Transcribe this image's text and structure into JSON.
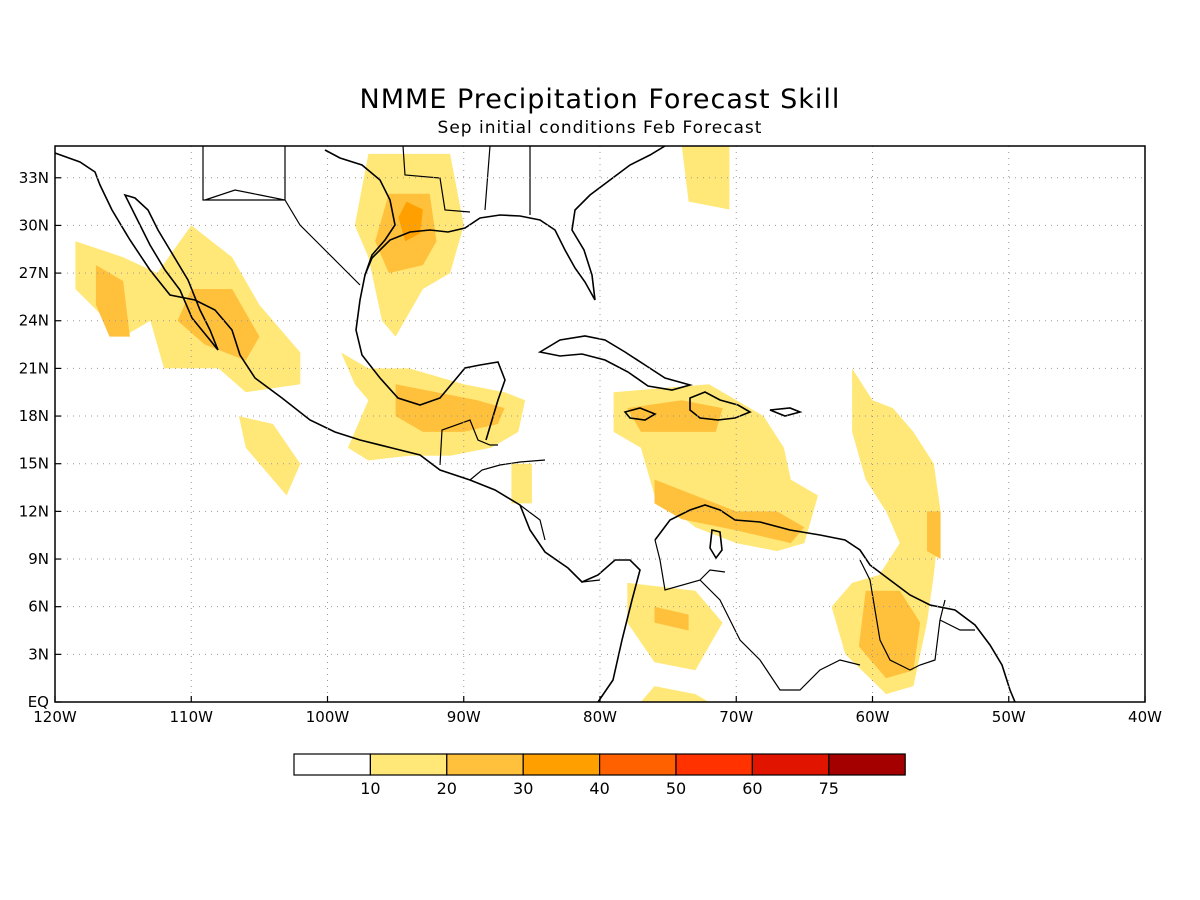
{
  "title": "NMME Precipitation Forecast Skill",
  "subtitle": "Sep initial conditions  Feb Forecast",
  "map": {
    "lon_range": [
      -120,
      -40
    ],
    "lat_range": [
      0,
      35
    ],
    "lon_ticks": [
      {
        "value": -120,
        "label": "120W"
      },
      {
        "value": -110,
        "label": "110W"
      },
      {
        "value": -100,
        "label": "100W"
      },
      {
        "value": -90,
        "label": "90W"
      },
      {
        "value": -80,
        "label": "80W"
      },
      {
        "value": -70,
        "label": "70W"
      },
      {
        "value": -60,
        "label": "60W"
      },
      {
        "value": -50,
        "label": "50W"
      },
      {
        "value": -40,
        "label": "40W"
      }
    ],
    "lat_ticks": [
      {
        "value": 0,
        "label": "EQ"
      },
      {
        "value": 3,
        "label": "3N"
      },
      {
        "value": 6,
        "label": "6N"
      },
      {
        "value": 9,
        "label": "9N"
      },
      {
        "value": 12,
        "label": "12N"
      },
      {
        "value": 15,
        "label": "15N"
      },
      {
        "value": 18,
        "label": "18N"
      },
      {
        "value": 21,
        "label": "21N"
      },
      {
        "value": 24,
        "label": "24N"
      },
      {
        "value": 27,
        "label": "27N"
      },
      {
        "value": 30,
        "label": "30N"
      },
      {
        "value": 33,
        "label": "33N"
      }
    ],
    "grid": true,
    "skill_regions": [
      {
        "level": 1,
        "poly": [
          [
            -118.5,
            29
          ],
          [
            -115,
            28
          ],
          [
            -112.5,
            27
          ],
          [
            -110,
            30
          ],
          [
            -107,
            28
          ],
          [
            -105,
            25
          ],
          [
            -102,
            22
          ],
          [
            -102,
            20
          ],
          [
            -106,
            19.5
          ],
          [
            -108,
            21
          ],
          [
            -112,
            21
          ],
          [
            -113,
            24
          ],
          [
            -115,
            23
          ],
          [
            -118.5,
            26
          ]
        ]
      },
      {
        "level": 2,
        "poly": [
          [
            -117,
            27.5
          ],
          [
            -115,
            26.5
          ],
          [
            -114.5,
            23
          ],
          [
            -116,
            23
          ],
          [
            -117,
            25
          ]
        ]
      },
      {
        "level": 2,
        "poly": [
          [
            -110,
            26
          ],
          [
            -107,
            26
          ],
          [
            -105,
            23
          ],
          [
            -106,
            21.5
          ],
          [
            -109,
            22.5
          ],
          [
            -111,
            24
          ]
        ]
      },
      {
        "level": 1,
        "poly": [
          [
            -106.5,
            18
          ],
          [
            -104,
            17.5
          ],
          [
            -102,
            15
          ],
          [
            -103,
            13
          ],
          [
            -104,
            14
          ],
          [
            -106,
            16
          ]
        ]
      },
      {
        "level": 1,
        "poly": [
          [
            -97,
            34.5
          ],
          [
            -91,
            34.5
          ],
          [
            -90,
            30
          ],
          [
            -91,
            27
          ],
          [
            -93,
            26
          ],
          [
            -95,
            23
          ],
          [
            -96,
            24
          ],
          [
            -97,
            28
          ],
          [
            -98,
            30
          ]
        ]
      },
      {
        "level": 2,
        "poly": [
          [
            -95.5,
            32
          ],
          [
            -92.5,
            32
          ],
          [
            -92,
            29
          ],
          [
            -93,
            27.5
          ],
          [
            -95.5,
            27
          ],
          [
            -96.5,
            29
          ]
        ]
      },
      {
        "level": 3,
        "poly": [
          [
            -94.2,
            31.5
          ],
          [
            -93,
            31
          ],
          [
            -93.2,
            29.5
          ],
          [
            -94.3,
            29
          ],
          [
            -94.8,
            30.5
          ]
        ]
      },
      {
        "level": 1,
        "poly": [
          [
            -99,
            22
          ],
          [
            -97,
            21
          ],
          [
            -94,
            21
          ],
          [
            -90,
            20
          ],
          [
            -87,
            19.5
          ],
          [
            -85.5,
            19
          ],
          [
            -86,
            17
          ],
          [
            -88,
            16
          ],
          [
            -91,
            15.5
          ],
          [
            -94,
            15.5
          ],
          [
            -97,
            15.2
          ],
          [
            -98.5,
            16
          ],
          [
            -97,
            19
          ],
          [
            -98,
            20
          ]
        ]
      },
      {
        "level": 2,
        "poly": [
          [
            -95,
            20
          ],
          [
            -92,
            19.5
          ],
          [
            -89,
            19
          ],
          [
            -87,
            18.5
          ],
          [
            -87.5,
            17.5
          ],
          [
            -90,
            17
          ],
          [
            -93,
            17
          ],
          [
            -95,
            18
          ]
        ]
      },
      {
        "level": 1,
        "poly": [
          [
            -86.5,
            15
          ],
          [
            -85,
            15
          ],
          [
            -85,
            12.5
          ],
          [
            -86.5,
            12.5
          ]
        ]
      },
      {
        "level": 1,
        "poly": [
          [
            -79,
            19.5
          ],
          [
            -72,
            20
          ],
          [
            -68,
            18
          ],
          [
            -66.5,
            16
          ],
          [
            -66,
            14
          ],
          [
            -64,
            13
          ],
          [
            -65,
            10
          ],
          [
            -67,
            9.5
          ],
          [
            -70,
            10
          ],
          [
            -73,
            11
          ],
          [
            -76,
            13
          ],
          [
            -77,
            16
          ],
          [
            -79,
            17
          ]
        ]
      },
      {
        "level": 2,
        "poly": [
          [
            -78,
            18.5
          ],
          [
            -74,
            19
          ],
          [
            -71,
            18.5
          ],
          [
            -71.5,
            17
          ],
          [
            -74,
            17
          ],
          [
            -77,
            17
          ]
        ]
      },
      {
        "level": 2,
        "poly": [
          [
            -76,
            14
          ],
          [
            -73,
            13
          ],
          [
            -70,
            12
          ],
          [
            -67,
            12
          ],
          [
            -65,
            11
          ],
          [
            -66,
            10
          ],
          [
            -70,
            10.8
          ],
          [
            -74,
            11.5
          ],
          [
            -76,
            12.5
          ]
        ]
      },
      {
        "level": 1,
        "poly": [
          [
            -61.5,
            21
          ],
          [
            -60,
            19
          ],
          [
            -58.5,
            18.5
          ],
          [
            -57,
            17
          ],
          [
            -55.5,
            15
          ],
          [
            -55,
            12
          ],
          [
            -55.5,
            8
          ],
          [
            -56,
            5
          ],
          [
            -57,
            1
          ],
          [
            -59,
            0.5
          ],
          [
            -62,
            3
          ],
          [
            -63,
            6
          ],
          [
            -61.5,
            7.5
          ],
          [
            -59.5,
            8
          ],
          [
            -58,
            10
          ],
          [
            -59,
            12
          ],
          [
            -60.5,
            14
          ],
          [
            -61.5,
            17
          ]
        ]
      },
      {
        "level": 2,
        "poly": [
          [
            -56,
            12
          ],
          [
            -55,
            12
          ],
          [
            -55,
            9
          ],
          [
            -56,
            9.5
          ]
        ]
      },
      {
        "level": 2,
        "poly": [
          [
            -60.5,
            7
          ],
          [
            -58,
            7
          ],
          [
            -56.5,
            5
          ],
          [
            -57,
            2
          ],
          [
            -59,
            1.5
          ],
          [
            -61,
            3.5
          ]
        ]
      },
      {
        "level": 1,
        "poly": [
          [
            -78,
            7.5
          ],
          [
            -73,
            7
          ],
          [
            -71,
            5
          ],
          [
            -73,
            2
          ],
          [
            -76,
            2.5
          ],
          [
            -78,
            5
          ]
        ]
      },
      {
        "level": 2,
        "poly": [
          [
            -76,
            6
          ],
          [
            -73.5,
            5.5
          ],
          [
            -73.5,
            4.5
          ],
          [
            -76,
            5
          ]
        ]
      },
      {
        "level": 1,
        "poly": [
          [
            -76,
            1
          ],
          [
            -73,
            0.5
          ],
          [
            -72,
            0
          ],
          [
            -77,
            0
          ]
        ]
      },
      {
        "level": 1,
        "poly": [
          [
            -74,
            35
          ],
          [
            -70.5,
            35
          ],
          [
            -70.5,
            31
          ],
          [
            -73.5,
            31.5
          ]
        ]
      }
    ]
  },
  "colorbar": {
    "labels": [
      "10",
      "20",
      "30",
      "40",
      "50",
      "60",
      "75"
    ],
    "colors": [
      "#ffffff",
      "#ffe878",
      "#ffc03c",
      "#ffa000",
      "#ff6000",
      "#ff3200",
      "#e11400",
      "#a50000"
    ]
  }
}
